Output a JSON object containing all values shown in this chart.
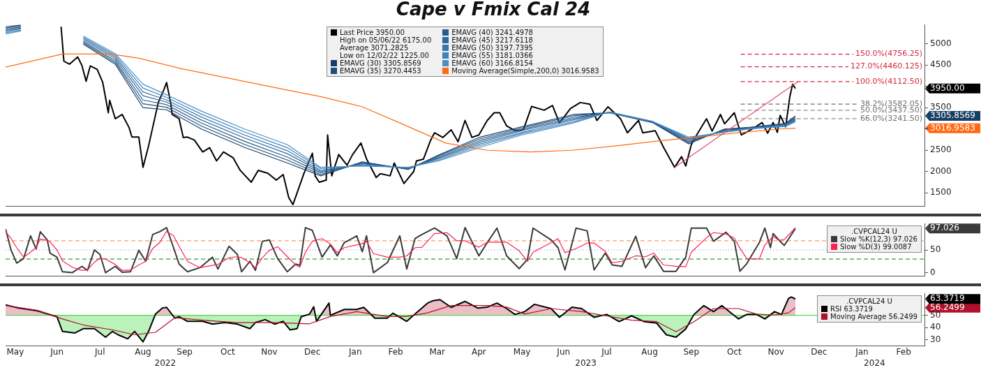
{
  "chart_data": [
    {
      "type": "line",
      "title": "Cape v Fmix Cal 24",
      "marker": "none",
      "legend": "top",
      "tick_labels": "y",
      "xlim": [
        "2022-05-09",
        "2024-03-01"
      ],
      "ylim": [
        1180,
        5450
      ],
      "yticks": [
        1500,
        2000,
        2500,
        {
          "value": 3000,
          "label": null
        },
        {
          "value": 3016.9583,
          "label": "3016.9583"
        },
        {
          "value": 3305.8569,
          "label": "3305.8569"
        },
        3500,
        {
          "value": 3950,
          "label": "3950.00"
        },
        {
          "value": 4000,
          "label": null
        },
        4500,
        5000
      ],
      "x": [
        "2022-05-09",
        "2022-05-20",
        "2022-06-01",
        "2022-07-04",
        "2022-07-27",
        "2022-08-16",
        "2022-09-02",
        "2022-09-27",
        "2022-10-28",
        "2022-11-28",
        "2022-12-22",
        "2023-01-21",
        "2023-02-23",
        "2023-03-17",
        "2023-04-16",
        "2023-05-16",
        "2023-06-22",
        "2023-07-18",
        "2023-08-18",
        "2023-09-13",
        "2023-10-09",
        "2023-10-27",
        "2023-11-22",
        "2023-11-29"
      ],
      "series": [
        {
          "name": "Last Price 3950.00",
          "color": "#000000",
          "x": [
            "2022-06-18",
            "2022-06-20",
            "2022-06-24",
            "2022-06-30",
            "2022-07-03",
            "2022-07-06",
            "2022-07-09",
            "2022-07-14",
            "2022-07-18",
            "2022-07-22",
            "2022-07-23",
            "2022-07-27",
            "2022-08-01",
            "2022-08-06",
            "2022-08-08",
            "2022-08-13",
            "2022-08-16",
            "2022-08-20",
            "2022-08-27",
            "2022-08-31",
            "2022-09-02",
            "2022-09-05",
            "2022-09-06",
            "2022-09-11",
            "2022-09-14",
            "2022-09-17",
            "2022-09-22",
            "2022-09-28",
            "2022-10-03",
            "2022-10-08",
            "2022-10-13",
            "2022-10-20",
            "2022-10-25",
            "2022-11-02",
            "2022-11-07",
            "2022-11-14",
            "2022-11-20",
            "2022-11-25",
            "2022-11-29",
            "2022-12-02",
            "2022-12-10",
            "2022-12-16",
            "2022-12-18",
            "2022-12-21",
            "2022-12-26",
            "2022-12-27",
            "2022-12-30",
            "2023-01-04",
            "2023-01-10",
            "2023-01-14",
            "2023-01-20",
            "2023-01-24",
            "2023-01-31",
            "2023-02-03",
            "2023-02-10",
            "2023-02-13",
            "2023-02-20",
            "2023-02-27",
            "2023-03-01",
            "2023-03-06",
            "2023-03-11",
            "2023-03-14",
            "2023-03-20",
            "2023-03-26",
            "2023-03-31",
            "2023-04-05",
            "2023-04-10",
            "2023-04-15",
            "2023-04-21",
            "2023-04-26",
            "2023-04-30",
            "2023-05-05",
            "2023-05-11",
            "2023-05-17",
            "2023-05-23",
            "2023-06-01",
            "2023-06-07",
            "2023-06-12",
            "2023-06-20",
            "2023-06-27",
            "2023-07-04",
            "2023-07-09",
            "2023-07-17",
            "2023-07-26",
            "2023-07-31",
            "2023-08-08",
            "2023-08-11",
            "2023-08-20",
            "2023-08-26",
            "2023-09-03",
            "2023-09-08",
            "2023-09-11",
            "2023-09-15",
            "2023-09-18",
            "2023-09-26",
            "2023-09-30",
            "2023-10-06",
            "2023-10-09",
            "2023-10-16",
            "2023-10-21",
            "2023-10-29",
            "2023-11-05",
            "2023-11-09",
            "2023-11-13",
            "2023-11-16",
            "2023-11-18",
            "2023-11-22",
            "2023-11-25",
            "2023-11-27",
            "2023-11-29"
          ],
          "values": [
            5400,
            4590,
            4520,
            4690,
            4490,
            4120,
            4480,
            4400,
            4090,
            3380,
            3670,
            3240,
            3340,
            3030,
            2810,
            2810,
            2100,
            2600,
            3620,
            3920,
            4090,
            3600,
            3340,
            3240,
            2800,
            2810,
            2740,
            2460,
            2560,
            2250,
            2460,
            2320,
            2030,
            1750,
            2030,
            1960,
            1800,
            1930,
            1390,
            1225,
            1960,
            2430,
            1900,
            1750,
            1800,
            2860,
            1900,
            2400,
            2150,
            2400,
            2670,
            2300,
            1860,
            1950,
            1900,
            2200,
            1720,
            2000,
            2250,
            2290,
            2720,
            2910,
            2800,
            2980,
            2700,
            3200,
            2800,
            2860,
            3200,
            3380,
            3380,
            3070,
            2960,
            2980,
            3530,
            3440,
            3550,
            3140,
            3480,
            3620,
            3580,
            3200,
            3520,
            3240,
            2910,
            3200,
            2910,
            2960,
            2570,
            2100,
            2350,
            2130,
            2630,
            2810,
            3240,
            2950,
            3340,
            3120,
            3380,
            2860,
            3000,
            3150,
            2900,
            3150,
            2920,
            3320,
            3050,
            3760,
            4050,
            3950
          ]
        },
        {
          "name": "EMAVG (30) 3305.8569",
          "color": "#173f66",
          "values": [
            5400,
            5440,
            null,
            4990,
            4520,
            3500,
            3450,
            3000,
            2570,
            2200,
            1900,
            2230,
            2050,
            2390,
            2810,
            3050,
            3340,
            3380,
            3150,
            2650,
            3000,
            3040,
            3130,
            3305.8569
          ]
        },
        {
          "name": "EMAVG (35) 3270.4453",
          "color": "#1f4e79",
          "values": [
            5370,
            5420,
            null,
            5020,
            4560,
            3590,
            3510,
            3070,
            2640,
            2270,
            1930,
            2210,
            2060,
            2370,
            2770,
            3020,
            3310,
            3380,
            3160,
            2680,
            2990,
            3030,
            3120,
            3270.4453
          ]
        },
        {
          "name": "EMAVG (40) 3241.4978",
          "color": "#275b8a",
          "values": [
            5340,
            5390,
            null,
            5050,
            4600,
            3680,
            3570,
            3140,
            2710,
            2340,
            1970,
            2200,
            2070,
            2340,
            2730,
            2990,
            3270,
            3390,
            3160,
            2700,
            2970,
            3030,
            3110,
            3241.4978
          ]
        },
        {
          "name": "EMAVG (45) 3217.6118",
          "color": "#2f689a",
          "values": [
            5310,
            5370,
            null,
            5090,
            4650,
            3780,
            3630,
            3210,
            2790,
            2420,
            2000,
            2180,
            2080,
            2320,
            2690,
            2960,
            3240,
            3390,
            3170,
            2730,
            2960,
            3020,
            3100,
            3217.6118
          ]
        },
        {
          "name": "EMAVG (50) 3197.7395",
          "color": "#3775aa",
          "values": [
            5290,
            5350,
            null,
            5120,
            4690,
            3870,
            3680,
            3280,
            2860,
            2490,
            2030,
            2160,
            2080,
            2300,
            2650,
            2920,
            3210,
            3390,
            3170,
            2760,
            2950,
            3010,
            3080,
            3197.7395
          ]
        },
        {
          "name": "EMAVG (55) 3181.0366",
          "color": "#3f82b9",
          "values": [
            5260,
            5320,
            null,
            5150,
            4730,
            3960,
            3740,
            3350,
            2930,
            2560,
            2070,
            2150,
            2090,
            2270,
            2610,
            2890,
            3170,
            3400,
            3180,
            2780,
            2930,
            3010,
            3070,
            3181.0366
          ]
        },
        {
          "name": "EMAVG (60) 3166.8154",
          "color": "#4a8fc6",
          "values": [
            5230,
            5300,
            null,
            5180,
            4770,
            4050,
            3800,
            3420,
            3000,
            2630,
            2100,
            2130,
            2100,
            2250,
            2570,
            2860,
            3140,
            3400,
            3180,
            2810,
            2920,
            3000,
            3060,
            3166.8154
          ]
        },
        {
          "name": "Moving Average(Simple,200,0) 3016.9583",
          "color": "#ff6a13",
          "x": [
            "2022-05-09",
            "2022-06-19",
            "2022-07-24",
            "2022-08-13",
            "2022-09-12",
            "2022-10-17",
            "2022-11-27",
            "2022-12-22",
            "2023-01-21",
            "2023-02-20",
            "2023-03-22",
            "2023-04-21",
            "2023-05-22",
            "2023-06-21",
            "2023-07-22",
            "2023-08-20",
            "2023-09-19",
            "2023-10-19",
            "2023-11-18",
            "2023-11-29"
          ],
          "values": [
            4450,
            4760,
            4760,
            4660,
            4420,
            4190,
            3920,
            3760,
            3520,
            3100,
            2670,
            2500,
            2460,
            2500,
            2600,
            2710,
            2810,
            2910,
            3000,
            3016.9583
          ]
        },
        {
          "color": "#e0506a",
          "x": [
            "2023-09-03",
            "2023-12-01"
          ],
          "values": [
            2100,
            4112.5
          ]
        }
      ],
      "ref_lines": [
        {
          "axis": "y",
          "value": 4756.25,
          "label": "150.0%(4756.25)",
          "color": "#d4283c",
          "line_style": "dashed"
        },
        {
          "axis": "y",
          "value": 4460.125,
          "label": "127.0%(4460.125)",
          "color": "#d4283c",
          "line_style": "dashed"
        },
        {
          "axis": "y",
          "value": 4112.5,
          "label": "100.0%(4112.50)",
          "color": "#d4283c",
          "line_style": "dashed"
        },
        {
          "axis": "y",
          "value": 3582.05,
          "label": "38.2%(3582.05)",
          "color": "#6e6e6e",
          "line_style": "dashed"
        },
        {
          "axis": "y",
          "value": 3437.5,
          "label": "50.0%(3437.50)",
          "color": "#6e6e6e",
          "line_style": "dashed"
        },
        {
          "axis": "y",
          "value": 3241.5,
          "label": "66.0%(3241.50)",
          "color": "#6e6e6e",
          "line_style": "dashed"
        }
      ],
      "annotations": [
        "High on 05/06/22 6175.00",
        "Average 3071.2825",
        "Low on 12/02/22 1225.00"
      ]
    },
    {
      "type": "line",
      "marker": "none",
      "legend": "top right",
      "tick_labels": "y",
      "legend_title": ".CVPCAL24 U",
      "xlim": [
        "2022-05-09",
        "2024-03-01"
      ],
      "ylim": [
        -8,
        108
      ],
      "yticks": [
        0,
        50,
        {
          "value": 97.026,
          "label": "97.026"
        }
      ],
      "x": [
        "2022-05-09",
        "2022-05-13",
        "2022-05-17",
        "2022-05-22",
        "2022-05-27",
        "2022-05-31",
        "2022-06-03",
        "2022-06-08",
        "2022-06-10",
        "2022-06-15",
        "2022-06-19",
        "2022-06-26",
        "2022-07-03",
        "2022-07-07",
        "2022-07-12",
        "2022-07-16",
        "2022-07-20",
        "2022-07-27",
        "2022-08-01",
        "2022-08-07",
        "2022-08-13",
        "2022-08-18",
        "2022-08-23",
        "2022-08-28",
        "2022-09-02",
        "2022-09-07",
        "2022-09-11",
        "2022-09-17",
        "2022-09-26",
        "2022-10-05",
        "2022-10-09",
        "2022-10-17",
        "2022-10-23",
        "2022-10-26",
        "2022-11-01",
        "2022-11-05",
        "2022-11-10",
        "2022-11-15",
        "2022-11-21",
        "2022-11-28",
        "2022-12-04",
        "2022-12-07",
        "2022-12-11",
        "2022-12-16",
        "2022-12-23",
        "2022-12-29",
        "2023-01-03",
        "2023-01-08",
        "2023-01-17",
        "2023-01-21",
        "2023-01-24",
        "2023-01-29",
        "2023-02-08",
        "2023-02-17",
        "2023-02-22",
        "2023-02-28",
        "2023-03-05",
        "2023-03-14",
        "2023-03-23",
        "2023-03-30",
        "2023-04-05",
        "2023-04-15",
        "2023-04-21",
        "2023-04-28",
        "2023-05-05",
        "2023-05-14",
        "2023-05-20",
        "2023-05-24",
        "2023-06-06",
        "2023-06-11",
        "2023-06-16",
        "2023-06-24",
        "2023-07-02",
        "2023-07-07",
        "2023-07-15",
        "2023-07-20",
        "2023-07-27",
        "2023-08-06",
        "2023-08-13",
        "2023-08-19",
        "2023-08-26",
        "2023-09-04",
        "2023-09-11",
        "2023-09-15",
        "2023-09-26",
        "2023-10-01",
        "2023-10-10",
        "2023-10-16",
        "2023-10-20",
        "2023-10-25",
        "2023-11-03",
        "2023-11-07",
        "2023-11-11",
        "2023-11-13",
        "2023-11-17",
        "2023-11-21",
        "2023-11-29"
      ],
      "series": [
        {
          "name": "Slow %K(12,3) 97.026",
          "color": "#3a3a3a",
          "values": [
            96,
            49,
            21,
            31,
            81,
            52,
            90,
            72,
            43,
            34,
            2,
            0,
            14,
            5,
            50,
            40,
            0,
            14,
            1,
            2,
            49,
            25,
            84,
            90,
            99,
            55,
            19,
            2,
            11,
            34,
            8,
            58,
            40,
            2,
            25,
            5,
            69,
            72,
            31,
            2,
            19,
            16,
            99,
            93,
            34,
            61,
            37,
            66,
            81,
            46,
            81,
            0,
            22,
            81,
            8,
            75,
            84,
            98,
            81,
            31,
            99,
            37,
            66,
            98,
            37,
            9,
            29,
            98,
            72,
            55,
            6,
            98,
            92,
            6,
            43,
            17,
            14,
            80,
            11,
            37,
            3,
            3,
            34,
            98,
            98,
            69,
            89,
            69,
            3,
            20,
            66,
            98,
            55,
            86,
            72,
            60,
            97.026
          ]
        },
        {
          "name": "Slow %D(3) 99.0087",
          "color": "#ff2050",
          "values": [
            90,
            75,
            55,
            34,
            45,
            55,
            74,
            71,
            68,
            50,
            26,
            12,
            5,
            6,
            23,
            32,
            30,
            18,
            5,
            6,
            17,
            25,
            53,
            66,
            91,
            81,
            58,
            25,
            11,
            16,
            18,
            33,
            35,
            33,
            22,
            11,
            33,
            49,
            57,
            35,
            17,
            12,
            45,
            69,
            75,
            63,
            44,
            55,
            61,
            64,
            69,
            42,
            34,
            34,
            37,
            55,
            56,
            86,
            88,
            70,
            70,
            56,
            67,
            67,
            67,
            48,
            25,
            45,
            66,
            75,
            44,
            53,
            65,
            65,
            47,
            22,
            25,
            37,
            35,
            43,
            17,
            14,
            13,
            45,
            77,
            88,
            85,
            76,
            54,
            31,
            30,
            61,
            73,
            80,
            71,
            73,
            99.0087
          ]
        }
      ],
      "ref_lines": [
        {
          "axis": "y",
          "value": 70,
          "color": "#ff9966",
          "line_style": "dashed"
        },
        {
          "axis": "y",
          "value": 50,
          "color": "#6a97a8",
          "line_style": "dotted"
        },
        {
          "axis": "y",
          "value": 30,
          "color": "#33a033",
          "line_style": "dashed"
        }
      ]
    },
    {
      "type": "line",
      "marker": "none",
      "legend": "top right",
      "legend_title": ".CVPCAL24 U",
      "xlim": [
        "2022-05-09",
        "2024-03-01"
      ],
      "ylim": [
        25,
        68
      ],
      "yticks": [
        30,
        40,
        50,
        {
          "value": 56.2499,
          "label": "56.2499"
        },
        {
          "value": 63.3719,
          "label": "63.3719"
        }
      ],
      "xticks": [
        {
          "value": "2022-05-16",
          "label": "May"
        },
        {
          "value": "2022-06-15",
          "label": "Jun"
        },
        {
          "value": "2022-07-16",
          "label": "Jul"
        },
        {
          "value": "2022-08-16",
          "label": "Aug"
        },
        {
          "value": "2022-09-15",
          "label": "Sep"
        },
        {
          "value": "2022-10-16",
          "label": "Oct"
        },
        {
          "value": "2022-11-15",
          "label": "Nov"
        },
        {
          "value": "2022-12-16",
          "label": "Dec"
        },
        {
          "value": "2023-01-16",
          "label": "Jan"
        },
        {
          "value": "2023-02-14",
          "label": "Feb"
        },
        {
          "value": "2023-03-16",
          "label": "Mar"
        },
        {
          "value": "2023-04-15",
          "label": "Apr"
        },
        {
          "value": "2023-05-16",
          "label": "May"
        },
        {
          "value": "2023-06-15",
          "label": "Jun"
        },
        {
          "value": "2023-07-16",
          "label": "Jul"
        },
        {
          "value": "2023-08-16",
          "label": "Aug"
        },
        {
          "value": "2023-09-15",
          "label": "Sep"
        },
        {
          "value": "2023-10-16",
          "label": "Oct"
        },
        {
          "value": "2023-11-15",
          "label": "Nov"
        },
        {
          "value": "2023-12-16",
          "label": "Dec"
        },
        {
          "value": "2024-01-16",
          "label": "Jan"
        },
        {
          "value": "2024-02-15",
          "label": "Feb"
        }
      ],
      "x2lim": [
        "2022-05-09",
        "2024-03-01"
      ],
      "x2ticks": [
        {
          "value": "2022-09-01",
          "label": "2022"
        },
        {
          "value": "2023-07-01",
          "label": "2023"
        },
        {
          "value": "2024-01-25",
          "label": "2024"
        }
      ],
      "series": [
        {
          "name": "RSI 63.3719",
          "type": "area",
          "color": "#000000",
          "x": [
            "2022-05-09",
            "2022-05-18",
            "2022-06-01",
            "2022-06-15",
            "2022-06-19",
            "2022-06-28",
            "2022-07-04",
            "2022-07-12",
            "2022-07-20",
            "2022-07-25",
            "2022-07-29",
            "2022-08-05",
            "2022-08-10",
            "2022-08-16",
            "2022-08-20",
            "2022-08-25",
            "2022-08-30",
            "2022-09-02",
            "2022-09-08",
            "2022-09-11",
            "2022-09-17",
            "2022-09-28",
            "2022-10-05",
            "2022-10-14",
            "2022-10-23",
            "2022-11-01",
            "2022-11-05",
            "2022-11-12",
            "2022-11-19",
            "2022-11-25",
            "2022-11-30",
            "2022-12-05",
            "2022-12-08",
            "2022-12-14",
            "2022-12-17",
            "2022-12-19",
            "2022-12-28",
            "2022-12-29",
            "2023-01-08",
            "2023-01-17",
            "2023-01-22",
            "2023-01-30",
            "2023-02-08",
            "2023-02-12",
            "2023-02-22",
            "2023-02-28",
            "2023-03-09",
            "2023-03-13",
            "2023-03-18",
            "2023-03-26",
            "2023-04-05",
            "2023-04-14",
            "2023-04-21",
            "2023-04-28",
            "2023-05-05",
            "2023-05-11",
            "2023-05-18",
            "2023-05-25",
            "2023-06-06",
            "2023-06-12",
            "2023-06-21",
            "2023-06-28",
            "2023-07-07",
            "2023-07-16",
            "2023-07-25",
            "2023-08-03",
            "2023-08-12",
            "2023-08-21",
            "2023-08-28",
            "2023-09-04",
            "2023-09-11",
            "2023-09-17",
            "2023-09-24",
            "2023-10-01",
            "2023-10-07",
            "2023-10-19",
            "2023-10-25",
            "2023-11-01",
            "2023-11-07",
            "2023-11-14",
            "2023-11-19",
            "2023-11-24",
            "2023-11-26",
            "2023-11-29"
          ],
          "values": [
            58.5,
            56,
            53.6,
            48.8,
            36.7,
            35.5,
            39,
            39,
            32,
            36.7,
            34,
            30.6,
            36.7,
            28.2,
            36.7,
            51,
            56,
            56.5,
            47.6,
            48.8,
            45,
            45,
            42.7,
            44,
            42.7,
            39,
            44,
            46.4,
            42.7,
            45,
            38,
            39,
            48.8,
            51,
            57,
            45,
            60,
            50,
            54.8,
            54.8,
            56.5,
            47.6,
            47.6,
            51.7,
            45,
            51,
            60,
            62,
            62.8,
            56.5,
            61.4,
            56,
            56.7,
            60,
            55.5,
            50.7,
            53,
            59,
            55.5,
            48.3,
            56.7,
            55.5,
            48.3,
            50.7,
            44.8,
            49.5,
            44.8,
            43.6,
            34,
            32,
            38.8,
            50.7,
            57.9,
            53,
            57.9,
            47,
            50.7,
            50.7,
            47,
            53,
            50.7,
            63.8,
            65,
            63.3719
          ]
        },
        {
          "name": "Moving Average 56.2499",
          "color": "#b0102a",
          "x": [
            "2022-05-09",
            "2022-06-01",
            "2022-06-19",
            "2022-07-04",
            "2022-07-25",
            "2022-08-10",
            "2022-08-25",
            "2022-09-08",
            "2022-09-28",
            "2022-10-23",
            "2022-11-19",
            "2022-12-14",
            "2022-12-29",
            "2023-01-17",
            "2023-02-08",
            "2023-02-22",
            "2023-03-09",
            "2023-03-26",
            "2023-04-21",
            "2023-05-05",
            "2023-05-18",
            "2023-06-06",
            "2023-06-28",
            "2023-07-16",
            "2023-08-03",
            "2023-08-21",
            "2023-09-04",
            "2023-09-17",
            "2023-10-01",
            "2023-10-19",
            "2023-11-01",
            "2023-11-14",
            "2023-11-24",
            "2023-11-29"
          ],
          "values": [
            58,
            54,
            47,
            42,
            38,
            34,
            36,
            48,
            46,
            44,
            44,
            43,
            49,
            53,
            49,
            49,
            52,
            58,
            58,
            56.7,
            51,
            55.5,
            53,
            49.5,
            46,
            44.8,
            36.4,
            44.8,
            55.5,
            55.5,
            51,
            50.2,
            52,
            56.2499
          ]
        }
      ],
      "ref_lines": [
        {
          "axis": "y",
          "value": 50,
          "color": "#55dd55",
          "line_style": "solid"
        }
      ]
    }
  ]
}
